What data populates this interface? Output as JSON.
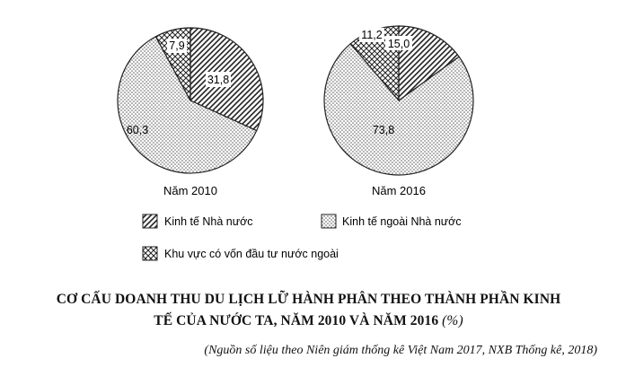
{
  "chart_data": [
    {
      "type": "pie",
      "label": "Năm 2010",
      "slices": [
        {
          "name": "Kinh tế Nhà nước",
          "value": 31.8,
          "label": "31,8"
        },
        {
          "name": "Kinh tế ngoài Nhà nước",
          "value": 60.3,
          "label": "60,3"
        },
        {
          "name": "Khu vực có vốn đầu tư nước ngoài",
          "value": 7.9,
          "label": "7,9"
        }
      ]
    },
    {
      "type": "pie",
      "label": "Năm 2016",
      "slices": [
        {
          "name": "Kinh tế Nhà nước",
          "value": 15.0,
          "label": "15,0"
        },
        {
          "name": "Kinh tế ngoài Nhà nước",
          "value": 73.8,
          "label": "73,8"
        },
        {
          "name": "Khu vực có vốn đầu tư nước ngoài",
          "value": 11.2,
          "label": "11,2"
        }
      ]
    }
  ],
  "legend": {
    "items": [
      {
        "label": "Kinh tế Nhà nước",
        "pattern": "hatch"
      },
      {
        "label": "Kinh tế ngoài Nhà nước",
        "pattern": "dots"
      },
      {
        "label": "Khu vực có vốn đầu tư nước ngoài",
        "pattern": "crosshatch"
      }
    ]
  },
  "title": {
    "line1": "CƠ CẤU DOANH THU DU LỊCH LỮ HÀNH PHÂN THEO THÀNH PHẦN KINH",
    "line2": "TẾ CỦA NƯỚC TA, NĂM 2010 VÀ NĂM 2016",
    "unit": "(%)"
  },
  "source": "(Nguồn số liệu theo Niên giám thống kê Việt Nam 2017, NXB Thống kê, 2018)"
}
